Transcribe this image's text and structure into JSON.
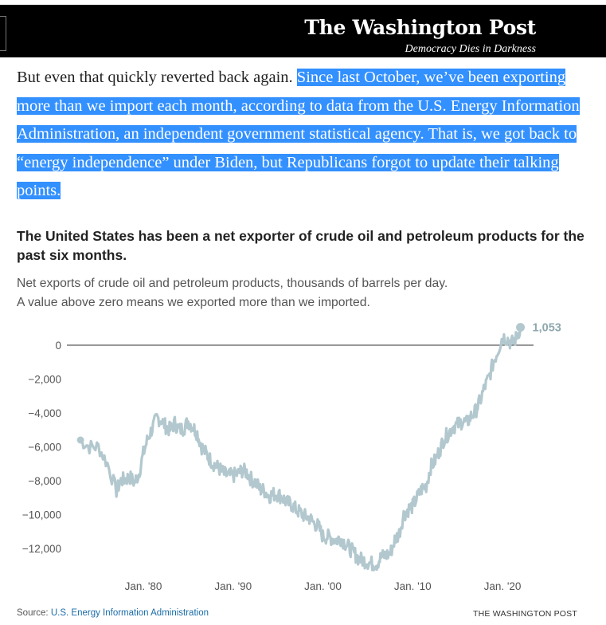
{
  "masthead": {
    "title": "The Washington Post",
    "tagline": "Democracy Dies in Darkness"
  },
  "article": {
    "intro": "But even that quickly reverted back again.",
    "highlighted": "Since last October, we’ve been exporting more than we import each month, according to data from the U.S. Energy Information Administration, an independent government statistical agency. That is, we got back to “energy independence” under Biden, but Republicans forgot to update their talking points."
  },
  "figure": {
    "headline": "The United States has been a net exporter of crude oil and petroleum products for the past six months.",
    "subtitle_line1": "Net exports of crude oil and petroleum products, thousands of barrels per day.",
    "subtitle_line2": "A value above zero means we exported more than we imported.",
    "source_label": "Source:",
    "source_name": "U.S. Energy Information Administration",
    "credit": "THE WASHINGTON POST"
  },
  "chart_data": {
    "type": "line",
    "title": "The United States has been a net exporter of crude oil and petroleum products for the past six months.",
    "subtitle": "Net exports of crude oil and petroleum products, thousands of barrels per day.",
    "xlabel": "",
    "ylabel": "",
    "x_tick_labels": [
      "Jan. '80",
      "Jan. '90",
      "Jan. '00",
      "Jan. '10",
      "Jan. '20"
    ],
    "x_tick_years": [
      1980,
      1990,
      2000,
      2010,
      2020
    ],
    "y_ticks": [
      0,
      -2000,
      -4000,
      -6000,
      -8000,
      -10000,
      -12000
    ],
    "y_tick_labels": [
      "0",
      "−2,000",
      "−4,000",
      "−6,000",
      "−8,000",
      "−10,000",
      "−12,000"
    ],
    "xlim": [
      1972.5,
      2022.5
    ],
    "ylim": [
      -13500,
      1500
    ],
    "grid": false,
    "baseline": 0,
    "line_color": "#b2c8ce",
    "end_label": "1,053",
    "series": [
      {
        "x": [
          1973.0,
          1974.0,
          1975.0,
          1976.0,
          1977.0,
          1977.5,
          1978.0,
          1978.5,
          1979.0,
          1979.5,
          1980.0,
          1980.5,
          1981.0,
          1981.5,
          1982.0,
          1982.5,
          1983.0,
          1983.5,
          1984.0,
          1984.5,
          1985.0,
          1985.5,
          1986.0,
          1986.5,
          1987.0,
          1987.5,
          1988.0,
          1988.5,
          1989.0,
          1989.5,
          1990.0,
          1990.5,
          1991.0,
          1991.5,
          1992.0,
          1992.5,
          1993.0,
          1993.5,
          1994.0,
          1994.5,
          1995.0,
          1995.5,
          1996.0,
          1996.5,
          1997.0,
          1997.5,
          1998.0,
          1998.5,
          1999.0,
          1999.5,
          2000.0,
          2000.5,
          2001.0,
          2001.5,
          2002.0,
          2002.5,
          2003.0,
          2003.5,
          2004.0,
          2004.5,
          2005.0,
          2005.5,
          2006.0,
          2006.5,
          2007.0,
          2007.5,
          2008.0,
          2008.5,
          2009.0,
          2009.5,
          2010.0,
          2010.5,
          2011.0,
          2011.5,
          2012.0,
          2012.5,
          2013.0,
          2013.5,
          2014.0,
          2014.5,
          2015.0,
          2015.5,
          2016.0,
          2016.5,
          2017.0,
          2017.5,
          2018.0,
          2018.5,
          2019.0,
          2019.5,
          2020.0,
          2020.5,
          2021.0,
          2021.5,
          2022.0
        ],
        "y": [
          -5600,
          -6000,
          -6000,
          -7000,
          -8600,
          -8000,
          -7900,
          -7800,
          -8100,
          -7600,
          -6400,
          -5500,
          -4900,
          -4300,
          -4400,
          -4800,
          -5000,
          -4600,
          -5000,
          -4900,
          -4500,
          -4800,
          -5200,
          -6000,
          -6400,
          -6800,
          -7100,
          -7300,
          -7600,
          -7700,
          -7700,
          -7600,
          -7400,
          -7500,
          -7900,
          -8100,
          -8500,
          -8600,
          -8900,
          -8800,
          -8800,
          -9000,
          -9300,
          -9400,
          -9700,
          -9900,
          -10100,
          -10200,
          -10500,
          -10700,
          -11300,
          -11300,
          -11400,
          -11500,
          -11400,
          -11700,
          -12000,
          -12300,
          -12600,
          -12700,
          -12800,
          -12900,
          -12900,
          -12500,
          -12400,
          -12300,
          -11500,
          -11100,
          -10000,
          -9700,
          -9500,
          -9000,
          -8500,
          -8300,
          -7200,
          -6800,
          -6200,
          -5500,
          -5200,
          -4800,
          -4700,
          -4500,
          -4600,
          -4200,
          -3900,
          -3300,
          -2500,
          -1900,
          -1000,
          -300,
          500,
          400,
          100,
          400,
          1053
        ]
      }
    ]
  }
}
